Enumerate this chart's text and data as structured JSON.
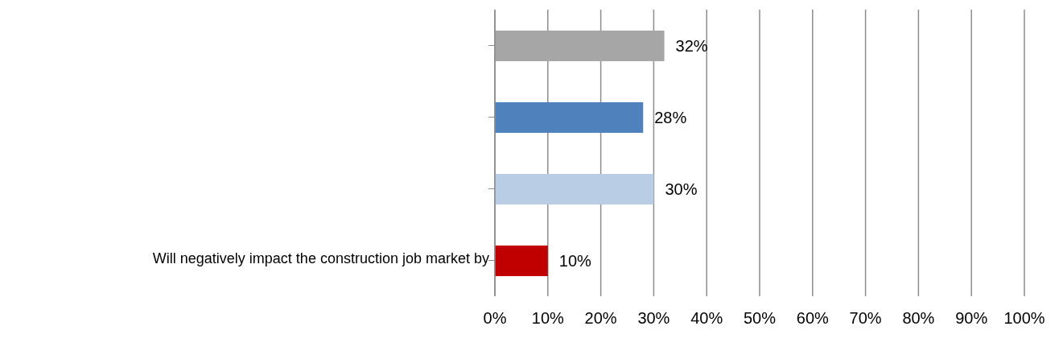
{
  "chart_data": {
    "type": "bar",
    "orientation": "horizontal",
    "categories": [
      null,
      null,
      null,
      null
    ],
    "annotations": [
      "Will negatively impact the construction job market by"
    ],
    "values": [
      32,
      28,
      30,
      10
    ],
    "colors": [
      "#a6a6a6",
      "#4f81bd",
      "#b9cde5",
      "#c00000"
    ],
    "value_labels": [
      "32%",
      "28%",
      "30%",
      "10%"
    ],
    "xlim": [
      0,
      100
    ],
    "xticks": [
      {
        "value": 0,
        "label": "0%"
      },
      {
        "value": 10,
        "label": "10%"
      },
      {
        "value": 20,
        "label": "20%"
      },
      {
        "value": 30,
        "label": "30%"
      },
      {
        "value": 40,
        "label": "40%"
      },
      {
        "value": 50,
        "label": "50%"
      },
      {
        "value": 60,
        "label": "60%"
      },
      {
        "value": 70,
        "label": "70%"
      },
      {
        "value": 80,
        "label": "80%"
      },
      {
        "value": 90,
        "label": "90%"
      },
      {
        "value": 100,
        "label": "100%"
      }
    ],
    "grid": "x",
    "legend": false
  }
}
